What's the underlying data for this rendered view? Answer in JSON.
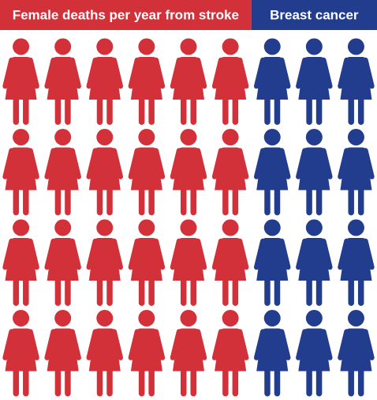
{
  "chart_data": {
    "type": "pictogram",
    "categories": [
      "Female deaths per year from stroke",
      "Breast cancer"
    ],
    "values": [
      24,
      12
    ],
    "colors": [
      "#d3313a",
      "#233d8e"
    ]
  }
}
